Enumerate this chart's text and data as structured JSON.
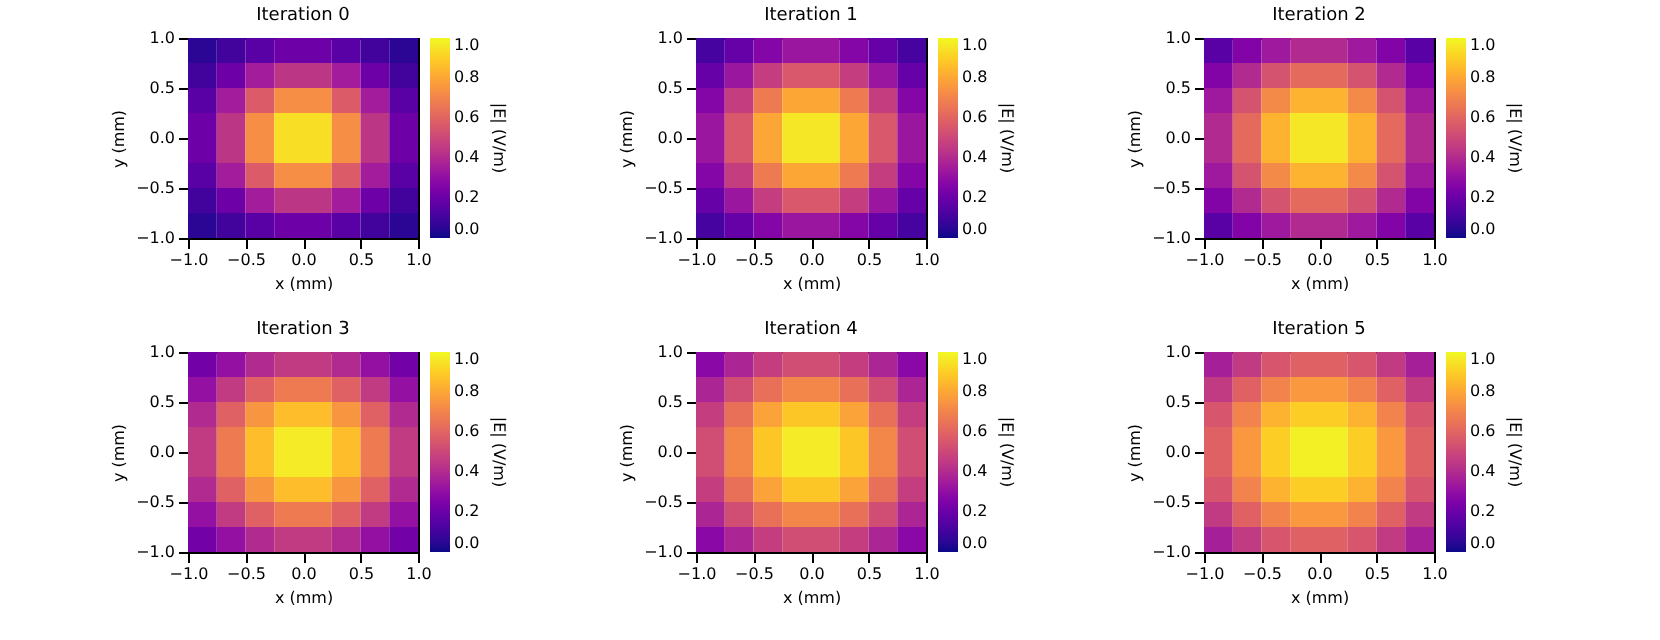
{
  "chart_data": [
    {
      "type": "heatmap",
      "title": "Iteration 0",
      "xlabel": "x (mm)",
      "ylabel": "y (mm)",
      "clabel": "|E| (V/m)",
      "x": [
        -0.875,
        -0.625,
        -0.375,
        -0.125,
        0.125,
        0.375,
        0.625,
        0.875
      ],
      "y": [
        0.875,
        0.625,
        0.375,
        0.125,
        -0.125,
        -0.375,
        -0.625,
        -0.875
      ],
      "xlim": [
        -1,
        1
      ],
      "ylim": [
        -1,
        1
      ],
      "xticks": [
        {
          "value": -1,
          "label": "−1.0"
        },
        {
          "value": -0.5,
          "label": "−0.5"
        },
        {
          "value": 0,
          "label": "0.0"
        },
        {
          "value": 0.5,
          "label": "0.5"
        },
        {
          "value": 1,
          "label": "1.0"
        }
      ],
      "yticks": [
        {
          "value": -1,
          "label": "−1.0"
        },
        {
          "value": -0.5,
          "label": "−0.5"
        },
        {
          "value": 0,
          "label": "0.0"
        },
        {
          "value": 0.5,
          "label": "0.5"
        },
        {
          "value": 1,
          "label": "1.0"
        }
      ],
      "clim": [
        0,
        1
      ],
      "cticks": [
        {
          "value": 0,
          "label": "0.0"
        },
        {
          "value": 0.2,
          "label": "0.2"
        },
        {
          "value": 0.4,
          "label": "0.4"
        },
        {
          "value": 0.6,
          "label": "0.6"
        },
        {
          "value": 0.8,
          "label": "0.8"
        },
        {
          "value": 1,
          "label": "1.0"
        }
      ],
      "cells": [
        [
          0.05,
          0.1,
          0.16,
          0.21,
          0.21,
          0.16,
          0.1,
          0.05
        ],
        [
          0.1,
          0.21,
          0.35,
          0.44,
          0.44,
          0.35,
          0.21,
          0.1
        ],
        [
          0.16,
          0.35,
          0.57,
          0.73,
          0.73,
          0.57,
          0.35,
          0.16
        ],
        [
          0.21,
          0.44,
          0.73,
          0.94,
          0.94,
          0.73,
          0.44,
          0.21
        ],
        [
          0.21,
          0.44,
          0.73,
          0.94,
          0.94,
          0.73,
          0.44,
          0.21
        ],
        [
          0.16,
          0.35,
          0.57,
          0.73,
          0.73,
          0.57,
          0.35,
          0.16
        ],
        [
          0.1,
          0.21,
          0.35,
          0.44,
          0.44,
          0.35,
          0.21,
          0.1
        ],
        [
          0.05,
          0.1,
          0.16,
          0.21,
          0.21,
          0.16,
          0.1,
          0.05
        ]
      ]
    },
    {
      "type": "heatmap",
      "title": "Iteration 1",
      "xlabel": "x (mm)",
      "ylabel": "y (mm)",
      "clabel": "|E| (V/m)",
      "x": [
        -0.875,
        -0.625,
        -0.375,
        -0.125,
        0.125,
        0.375,
        0.625,
        0.875
      ],
      "y": [
        0.875,
        0.625,
        0.375,
        0.125,
        -0.125,
        -0.375,
        -0.625,
        -0.875
      ],
      "xlim": [
        -1,
        1
      ],
      "ylim": [
        -1,
        1
      ],
      "xticks": [
        {
          "value": -1,
          "label": "−1.0"
        },
        {
          "value": -0.5,
          "label": "−0.5"
        },
        {
          "value": 0,
          "label": "0.0"
        },
        {
          "value": 0.5,
          "label": "0.5"
        },
        {
          "value": 1,
          "label": "1.0"
        }
      ],
      "yticks": [
        {
          "value": -1,
          "label": "−1.0"
        },
        {
          "value": -0.5,
          "label": "−0.5"
        },
        {
          "value": 0,
          "label": "0.0"
        },
        {
          "value": 0.5,
          "label": "0.5"
        },
        {
          "value": 1,
          "label": "1.0"
        }
      ],
      "clim": [
        0,
        1
      ],
      "cticks": [
        {
          "value": 0,
          "label": "0.0"
        },
        {
          "value": 0.2,
          "label": "0.2"
        },
        {
          "value": 0.4,
          "label": "0.4"
        },
        {
          "value": 0.6,
          "label": "0.6"
        },
        {
          "value": 0.8,
          "label": "0.8"
        },
        {
          "value": 1,
          "label": "1.0"
        }
      ],
      "cells": [
        [
          0.11,
          0.19,
          0.27,
          0.33,
          0.33,
          0.27,
          0.19,
          0.11
        ],
        [
          0.19,
          0.33,
          0.47,
          0.56,
          0.56,
          0.47,
          0.33,
          0.19
        ],
        [
          0.27,
          0.47,
          0.67,
          0.8,
          0.8,
          0.67,
          0.47,
          0.27
        ],
        [
          0.33,
          0.56,
          0.8,
          0.96,
          0.96,
          0.8,
          0.56,
          0.33
        ],
        [
          0.33,
          0.56,
          0.8,
          0.96,
          0.96,
          0.8,
          0.56,
          0.33
        ],
        [
          0.27,
          0.47,
          0.67,
          0.8,
          0.8,
          0.67,
          0.47,
          0.27
        ],
        [
          0.19,
          0.33,
          0.47,
          0.56,
          0.56,
          0.47,
          0.33,
          0.19
        ],
        [
          0.11,
          0.19,
          0.27,
          0.33,
          0.33,
          0.27,
          0.19,
          0.11
        ]
      ]
    },
    {
      "type": "heatmap",
      "title": "Iteration 2",
      "xlabel": "x (mm)",
      "ylabel": "y (mm)",
      "clabel": "|E| (V/m)",
      "x": [
        -0.875,
        -0.625,
        -0.375,
        -0.125,
        0.125,
        0.375,
        0.625,
        0.875
      ],
      "y": [
        0.875,
        0.625,
        0.375,
        0.125,
        -0.125,
        -0.375,
        -0.625,
        -0.875
      ],
      "xlim": [
        -1,
        1
      ],
      "ylim": [
        -1,
        1
      ],
      "xticks": [
        {
          "value": -1,
          "label": "−1.0"
        },
        {
          "value": -0.5,
          "label": "−0.5"
        },
        {
          "value": 0,
          "label": "0.0"
        },
        {
          "value": 0.5,
          "label": "0.5"
        },
        {
          "value": 1,
          "label": "1.0"
        }
      ],
      "yticks": [
        {
          "value": -1,
          "label": "−1.0"
        },
        {
          "value": -0.5,
          "label": "−0.5"
        },
        {
          "value": 0,
          "label": "0.0"
        },
        {
          "value": 0.5,
          "label": "0.5"
        },
        {
          "value": 1,
          "label": "1.0"
        }
      ],
      "clim": [
        0,
        1
      ],
      "cticks": [
        {
          "value": 0,
          "label": "0.0"
        },
        {
          "value": 0.2,
          "label": "0.2"
        },
        {
          "value": 0.4,
          "label": "0.4"
        },
        {
          "value": 0.6,
          "label": "0.6"
        },
        {
          "value": 0.8,
          "label": "0.8"
        },
        {
          "value": 1,
          "label": "1.0"
        }
      ],
      "cells": [
        [
          0.16,
          0.26,
          0.34,
          0.4,
          0.4,
          0.34,
          0.26,
          0.16
        ],
        [
          0.26,
          0.4,
          0.54,
          0.62,
          0.62,
          0.54,
          0.4,
          0.26
        ],
        [
          0.34,
          0.54,
          0.72,
          0.83,
          0.83,
          0.72,
          0.54,
          0.34
        ],
        [
          0.4,
          0.62,
          0.83,
          0.96,
          0.96,
          0.83,
          0.62,
          0.4
        ],
        [
          0.4,
          0.62,
          0.83,
          0.96,
          0.96,
          0.83,
          0.62,
          0.4
        ],
        [
          0.34,
          0.54,
          0.72,
          0.83,
          0.83,
          0.72,
          0.54,
          0.34
        ],
        [
          0.26,
          0.4,
          0.54,
          0.62,
          0.62,
          0.54,
          0.4,
          0.26
        ],
        [
          0.16,
          0.26,
          0.34,
          0.4,
          0.4,
          0.34,
          0.26,
          0.16
        ]
      ]
    },
    {
      "type": "heatmap",
      "title": "Iteration 3",
      "xlabel": "x (mm)",
      "ylabel": "y (mm)",
      "clabel": "|E| (V/m)",
      "x": [
        -0.875,
        -0.625,
        -0.375,
        -0.125,
        0.125,
        0.375,
        0.625,
        0.875
      ],
      "y": [
        0.875,
        0.625,
        0.375,
        0.125,
        -0.125,
        -0.375,
        -0.625,
        -0.875
      ],
      "xlim": [
        -1,
        1
      ],
      "ylim": [
        -1,
        1
      ],
      "xticks": [
        {
          "value": -1,
          "label": "−1.0"
        },
        {
          "value": -0.5,
          "label": "−0.5"
        },
        {
          "value": 0,
          "label": "0.0"
        },
        {
          "value": 0.5,
          "label": "0.5"
        },
        {
          "value": 1,
          "label": "1.0"
        }
      ],
      "yticks": [
        {
          "value": -1,
          "label": "−1.0"
        },
        {
          "value": -0.5,
          "label": "−0.5"
        },
        {
          "value": 0,
          "label": "0.0"
        },
        {
          "value": 0.5,
          "label": "0.5"
        },
        {
          "value": 1,
          "label": "1.0"
        }
      ],
      "clim": [
        0,
        1
      ],
      "cticks": [
        {
          "value": 0,
          "label": "0.0"
        },
        {
          "value": 0.2,
          "label": "0.2"
        },
        {
          "value": 0.4,
          "label": "0.4"
        },
        {
          "value": 0.6,
          "label": "0.6"
        },
        {
          "value": 0.8,
          "label": "0.8"
        },
        {
          "value": 1,
          "label": "1.0"
        }
      ],
      "cells": [
        [
          0.22,
          0.31,
          0.4,
          0.46,
          0.46,
          0.4,
          0.31,
          0.22
        ],
        [
          0.31,
          0.46,
          0.59,
          0.67,
          0.67,
          0.59,
          0.46,
          0.31
        ],
        [
          0.4,
          0.59,
          0.75,
          0.86,
          0.86,
          0.75,
          0.59,
          0.4
        ],
        [
          0.46,
          0.67,
          0.86,
          0.97,
          0.97,
          0.86,
          0.67,
          0.46
        ],
        [
          0.46,
          0.67,
          0.86,
          0.97,
          0.97,
          0.86,
          0.67,
          0.46
        ],
        [
          0.4,
          0.59,
          0.75,
          0.86,
          0.86,
          0.75,
          0.59,
          0.4
        ],
        [
          0.31,
          0.46,
          0.59,
          0.67,
          0.67,
          0.59,
          0.46,
          0.31
        ],
        [
          0.22,
          0.31,
          0.4,
          0.46,
          0.46,
          0.4,
          0.31,
          0.22
        ]
      ]
    },
    {
      "type": "heatmap",
      "title": "Iteration 4",
      "xlabel": "x (mm)",
      "ylabel": "y (mm)",
      "clabel": "|E| (V/m)",
      "x": [
        -0.875,
        -0.625,
        -0.375,
        -0.125,
        0.125,
        0.375,
        0.625,
        0.875
      ],
      "y": [
        0.875,
        0.625,
        0.375,
        0.125,
        -0.125,
        -0.375,
        -0.625,
        -0.875
      ],
      "xlim": [
        -1,
        1
      ],
      "ylim": [
        -1,
        1
      ],
      "xticks": [
        {
          "value": -1,
          "label": "−1.0"
        },
        {
          "value": -0.5,
          "label": "−0.5"
        },
        {
          "value": 0,
          "label": "0.0"
        },
        {
          "value": 0.5,
          "label": "0.5"
        },
        {
          "value": 1,
          "label": "1.0"
        }
      ],
      "yticks": [
        {
          "value": -1,
          "label": "−1.0"
        },
        {
          "value": -0.5,
          "label": "−0.5"
        },
        {
          "value": 0,
          "label": "0.0"
        },
        {
          "value": 0.5,
          "label": "0.5"
        },
        {
          "value": 1,
          "label": "1.0"
        }
      ],
      "clim": [
        0,
        1
      ],
      "cticks": [
        {
          "value": 0,
          "label": "0.0"
        },
        {
          "value": 0.2,
          "label": "0.2"
        },
        {
          "value": 0.4,
          "label": "0.4"
        },
        {
          "value": 0.6,
          "label": "0.6"
        },
        {
          "value": 0.8,
          "label": "0.8"
        },
        {
          "value": 1,
          "label": "1.0"
        }
      ],
      "cells": [
        [
          0.28,
          0.38,
          0.47,
          0.52,
          0.52,
          0.47,
          0.38,
          0.28
        ],
        [
          0.38,
          0.52,
          0.64,
          0.71,
          0.71,
          0.64,
          0.52,
          0.38
        ],
        [
          0.47,
          0.64,
          0.79,
          0.88,
          0.88,
          0.79,
          0.64,
          0.47
        ],
        [
          0.52,
          0.71,
          0.88,
          0.97,
          0.97,
          0.88,
          0.71,
          0.52
        ],
        [
          0.52,
          0.71,
          0.88,
          0.97,
          0.97,
          0.88,
          0.71,
          0.52
        ],
        [
          0.47,
          0.64,
          0.79,
          0.88,
          0.88,
          0.79,
          0.64,
          0.47
        ],
        [
          0.38,
          0.52,
          0.64,
          0.71,
          0.71,
          0.64,
          0.52,
          0.38
        ],
        [
          0.28,
          0.38,
          0.47,
          0.52,
          0.52,
          0.47,
          0.38,
          0.28
        ]
      ]
    },
    {
      "type": "heatmap",
      "title": "Iteration 5",
      "xlabel": "x (mm)",
      "ylabel": "y (mm)",
      "clabel": "|E| (V/m)",
      "x": [
        -0.875,
        -0.625,
        -0.375,
        -0.125,
        0.125,
        0.375,
        0.625,
        0.875
      ],
      "y": [
        0.875,
        0.625,
        0.375,
        0.125,
        -0.125,
        -0.375,
        -0.625,
        -0.875
      ],
      "xlim": [
        -1,
        1
      ],
      "ylim": [
        -1,
        1
      ],
      "xticks": [
        {
          "value": -1,
          "label": "−1.0"
        },
        {
          "value": -0.5,
          "label": "−0.5"
        },
        {
          "value": 0,
          "label": "0.0"
        },
        {
          "value": 0.5,
          "label": "0.5"
        },
        {
          "value": 1,
          "label": "1.0"
        }
      ],
      "yticks": [
        {
          "value": -1,
          "label": "−1.0"
        },
        {
          "value": -0.5,
          "label": "−0.5"
        },
        {
          "value": 0,
          "label": "0.0"
        },
        {
          "value": 0.5,
          "label": "0.5"
        },
        {
          "value": 1,
          "label": "1.0"
        }
      ],
      "clim": [
        0,
        1
      ],
      "cticks": [
        {
          "value": 0,
          "label": "0.0"
        },
        {
          "value": 0.2,
          "label": "0.2"
        },
        {
          "value": 0.4,
          "label": "0.4"
        },
        {
          "value": 0.6,
          "label": "0.6"
        },
        {
          "value": 0.8,
          "label": "0.8"
        },
        {
          "value": 1,
          "label": "1.0"
        }
      ],
      "cells": [
        [
          0.36,
          0.46,
          0.55,
          0.59,
          0.59,
          0.55,
          0.46,
          0.36
        ],
        [
          0.46,
          0.59,
          0.7,
          0.76,
          0.76,
          0.7,
          0.59,
          0.46
        ],
        [
          0.55,
          0.7,
          0.83,
          0.9,
          0.9,
          0.83,
          0.7,
          0.55
        ],
        [
          0.59,
          0.76,
          0.9,
          0.98,
          0.98,
          0.9,
          0.76,
          0.59
        ],
        [
          0.59,
          0.76,
          0.9,
          0.98,
          0.98,
          0.9,
          0.76,
          0.59
        ],
        [
          0.55,
          0.7,
          0.83,
          0.9,
          0.9,
          0.83,
          0.7,
          0.55
        ],
        [
          0.46,
          0.59,
          0.7,
          0.76,
          0.76,
          0.7,
          0.59,
          0.46
        ],
        [
          0.36,
          0.46,
          0.55,
          0.59,
          0.59,
          0.55,
          0.46,
          0.36
        ]
      ]
    }
  ]
}
